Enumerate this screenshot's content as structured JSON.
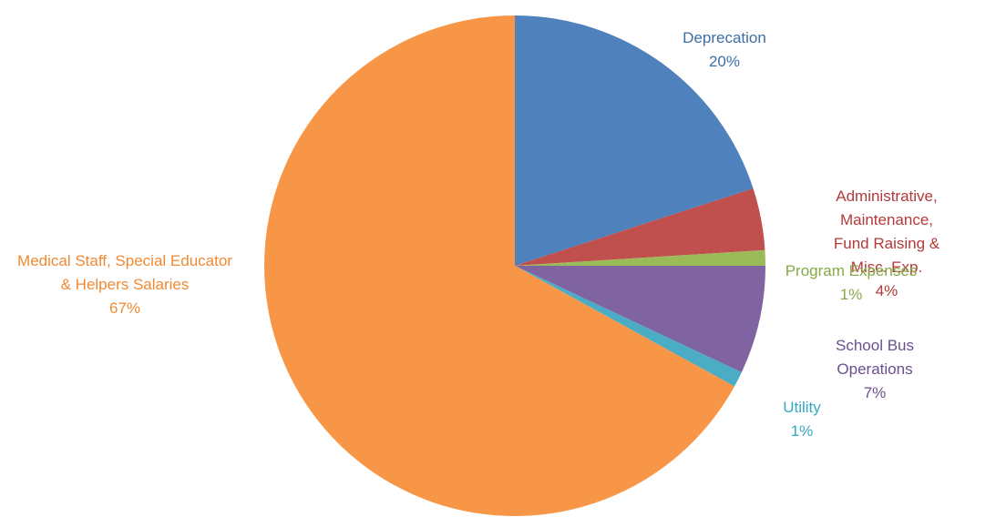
{
  "chart_data": {
    "type": "pie",
    "categories": [
      "Deprecation",
      "Administrative, Maintenance,\nFund Raising & Misc. Exp.",
      "Program Expenses",
      "School Bus Operations",
      "Utility",
      "Medical Staff, Special Educator\n& Helpers Salaries"
    ],
    "values": [
      20,
      4,
      1,
      7,
      1,
      67
    ],
    "value_labels": [
      "20%",
      "4%",
      "1%",
      "7%",
      "1%",
      "67%"
    ],
    "colors": [
      "#4f81bd",
      "#c0504d",
      "#9bbb59",
      "#8064a2",
      "#4bacc6",
      "#f79646"
    ],
    "label_colors": [
      "#3c6ea8",
      "#b3393a",
      "#87a846",
      "#6a4f8e",
      "#35a8c2",
      "#ef8a33"
    ]
  }
}
